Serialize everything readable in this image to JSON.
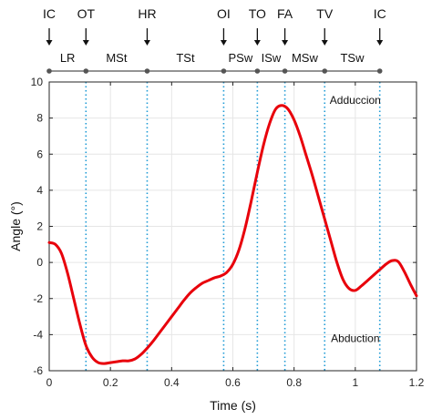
{
  "chart_data": {
    "type": "line",
    "xlabel": "Time (s)",
    "ylabel": "Angle (°)",
    "xlim": [
      0,
      1.2
    ],
    "ylim": [
      -6,
      10
    ],
    "xticks": [
      "0",
      "0.2",
      "0.4",
      "0.6",
      "0.8",
      "1",
      "1.2"
    ],
    "yticks": [
      "-6",
      "-4",
      "-2",
      "0",
      "2",
      "4",
      "6",
      "8",
      "10"
    ],
    "grid": true,
    "series": [
      {
        "color": "#e8000b",
        "x": [
          0,
          0.02,
          0.04,
          0.06,
          0.08,
          0.1,
          0.12,
          0.14,
          0.16,
          0.18,
          0.2,
          0.22,
          0.24,
          0.26,
          0.28,
          0.3,
          0.32,
          0.34,
          0.36,
          0.38,
          0.4,
          0.42,
          0.44,
          0.46,
          0.48,
          0.5,
          0.52,
          0.54,
          0.56,
          0.58,
          0.6,
          0.62,
          0.64,
          0.66,
          0.68,
          0.7,
          0.72,
          0.74,
          0.76,
          0.78,
          0.8,
          0.82,
          0.84,
          0.86,
          0.88,
          0.9,
          0.92,
          0.94,
          0.96,
          0.98,
          1.0,
          1.02,
          1.04,
          1.06,
          1.08,
          1.1,
          1.12,
          1.14,
          1.16,
          1.18,
          1.2
        ],
        "y": [
          1.1,
          1.0,
          0.5,
          -0.6,
          -2.0,
          -3.4,
          -4.6,
          -5.25,
          -5.55,
          -5.6,
          -5.55,
          -5.5,
          -5.45,
          -5.45,
          -5.35,
          -5.1,
          -4.75,
          -4.35,
          -3.9,
          -3.45,
          -3.0,
          -2.55,
          -2.1,
          -1.7,
          -1.4,
          -1.15,
          -1.0,
          -0.85,
          -0.75,
          -0.55,
          -0.1,
          0.7,
          1.9,
          3.4,
          5.0,
          6.5,
          7.7,
          8.5,
          8.7,
          8.5,
          7.9,
          7.0,
          5.9,
          4.8,
          3.6,
          2.4,
          1.2,
          0.0,
          -0.95,
          -1.45,
          -1.55,
          -1.3,
          -1.0,
          -0.7,
          -0.4,
          -0.1,
          0.1,
          0.05,
          -0.5,
          -1.2,
          -1.85
        ]
      }
    ],
    "events": [
      {
        "label": "IC",
        "x": 0
      },
      {
        "label": "OT",
        "x": 0.12
      },
      {
        "label": "HR",
        "x": 0.32
      },
      {
        "label": "OI",
        "x": 0.57
      },
      {
        "label": "TO",
        "x": 0.68
      },
      {
        "label": "FA",
        "x": 0.77
      },
      {
        "label": "TV",
        "x": 0.9
      },
      {
        "label": "IC",
        "x": 1.08
      }
    ],
    "phases": [
      {
        "label": "LR",
        "x": 0.06
      },
      {
        "label": "MSt",
        "x": 0.22
      },
      {
        "label": "TSt",
        "x": 0.445
      },
      {
        "label": "PSw",
        "x": 0.625
      },
      {
        "label": "ISw",
        "x": 0.725
      },
      {
        "label": "MSw",
        "x": 0.835
      },
      {
        "label": "TSw",
        "x": 0.99
      }
    ],
    "annotations": [
      {
        "text": "Adduccion",
        "x": 1.0,
        "y": 8.8
      },
      {
        "text": "Abduction",
        "x": 1.0,
        "y": -4.4
      }
    ],
    "colors": {
      "curve": "#e8000b",
      "event_lines": "#1f9bd6",
      "grid": "#e6e6e6",
      "timeline": "#555555"
    }
  }
}
